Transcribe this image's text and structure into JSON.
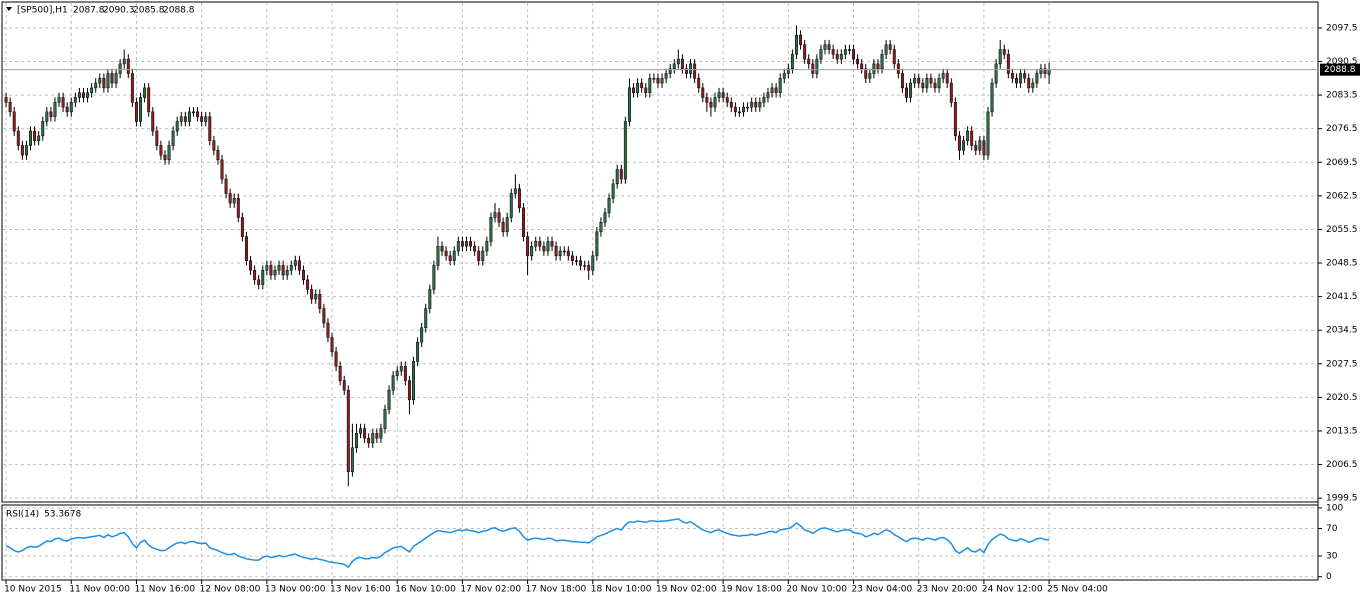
{
  "chart_data": [
    {
      "type": "candlestick",
      "title": "[SP500],H1",
      "open": [
        2083,
        2082,
        2080,
        2076,
        2073,
        2071,
        2073,
        2076,
        2074,
        2075,
        2078,
        2080,
        2079,
        2082,
        2083,
        2081,
        2080,
        2082,
        2083,
        2084,
        2083,
        2084,
        2085,
        2086,
        2087,
        2085,
        2088,
        2086,
        2088,
        2090,
        2091,
        2088,
        2082,
        2078,
        2083,
        2085,
        2080,
        2076,
        2073,
        2071,
        2070,
        2073,
        2076,
        2078,
        2079,
        2078,
        2080,
        2080,
        2079,
        2078,
        2079,
        2074,
        2072,
        2070,
        2066,
        2063,
        2061,
        2062,
        2058,
        2054,
        2049,
        2047,
        2045,
        2044,
        2047,
        2048,
        2046,
        2047,
        2048,
        2046,
        2047,
        2048,
        2049,
        2047,
        2045,
        2043,
        2041,
        2042,
        2039,
        2036,
        2033,
        2030,
        2027,
        2024,
        2022,
        2005,
        2010,
        2013,
        2014,
        2012,
        2011,
        2013,
        2012,
        2014,
        2018,
        2022,
        2025,
        2026,
        2027,
        2024,
        2020,
        2028,
        2032,
        2035,
        2039,
        2043,
        2048,
        2052,
        2051,
        2050,
        2049,
        2051,
        2053,
        2052,
        2053,
        2052,
        2051,
        2049,
        2051,
        2053,
        2058,
        2059,
        2057,
        2055,
        2058,
        2063,
        2064,
        2060,
        2054,
        2050,
        2052,
        2053,
        2052,
        2051,
        2053,
        2052,
        2050,
        2051,
        2051,
        2050,
        2049,
        2049,
        2048,
        2048,
        2047,
        2050,
        2055,
        2057,
        2059,
        2062,
        2065,
        2068,
        2066,
        2078,
        2085,
        2084,
        2086,
        2085,
        2084,
        2087,
        2087,
        2086,
        2087,
        2088,
        2089,
        2090,
        2091,
        2089,
        2088,
        2090,
        2087,
        2085,
        2083,
        2082,
        2081,
        2083,
        2084,
        2083,
        2082,
        2081,
        2080,
        2080,
        2081,
        2081,
        2082,
        2081,
        2082,
        2083,
        2084,
        2085,
        2084,
        2087,
        2088,
        2089,
        2092,
        2096,
        2094,
        2091,
        2090,
        2088,
        2091,
        2093,
        2094,
        2093,
        2092,
        2091,
        2092,
        2093,
        2093,
        2091,
        2090,
        2089,
        2087,
        2088,
        2090,
        2089,
        2092,
        2094,
        2093,
        2090,
        2088,
        2085,
        2083,
        2086,
        2087,
        2086,
        2085,
        2087,
        2086,
        2085,
        2087,
        2088,
        2086,
        2082,
        2075,
        2072,
        2074,
        2076,
        2073,
        2072,
        2074,
        2071,
        2080,
        2086,
        2090,
        2093,
        2092,
        2088,
        2087,
        2086,
        2088,
        2087,
        2085,
        2086,
        2088,
        2089,
        2087.8
      ],
      "high": [
        2084,
        2083,
        2081,
        2077,
        2074,
        2074,
        2077,
        2077,
        2076,
        2079,
        2081,
        2081,
        2083,
        2084,
        2084,
        2082,
        2083,
        2084,
        2085,
        2085,
        2085,
        2086,
        2087,
        2088,
        2088,
        2089,
        2089,
        2089,
        2091,
        2093,
        2092,
        2089,
        2083,
        2084,
        2086,
        2086,
        2081,
        2077,
        2074,
        2072,
        2074,
        2077,
        2079,
        2080,
        2080,
        2081,
        2081,
        2081,
        2080,
        2080,
        2080,
        2075,
        2073,
        2071,
        2067,
        2064,
        2063,
        2063,
        2059,
        2055,
        2050,
        2048,
        2046,
        2048,
        2049,
        2049,
        2048,
        2049,
        2049,
        2048,
        2049,
        2050,
        2050,
        2048,
        2046,
        2044,
        2043,
        2043,
        2040,
        2037,
        2034,
        2031,
        2028,
        2025,
        2023,
        2015,
        2015,
        2015,
        2015,
        2013,
        2014,
        2014,
        2015,
        2019,
        2023,
        2026,
        2027,
        2028,
        2028,
        2025,
        2029,
        2033,
        2036,
        2040,
        2044,
        2049,
        2054,
        2053,
        2052,
        2051,
        2052,
        2054,
        2054,
        2054,
        2054,
        2053,
        2052,
        2052,
        2054,
        2059,
        2061,
        2060,
        2058,
        2059,
        2064,
        2067,
        2065,
        2061,
        2055,
        2053,
        2054,
        2054,
        2053,
        2054,
        2054,
        2053,
        2052,
        2052,
        2052,
        2051,
        2050,
        2050,
        2049,
        2049,
        2051,
        2056,
        2058,
        2060,
        2063,
        2066,
        2069,
        2069,
        2079,
        2087,
        2086,
        2087,
        2087,
        2086,
        2088,
        2088,
        2088,
        2088,
        2089,
        2090,
        2091,
        2093,
        2092,
        2090,
        2091,
        2091,
        2088,
        2086,
        2084,
        2083,
        2084,
        2085,
        2085,
        2084,
        2083,
        2082,
        2081,
        2082,
        2082,
        2083,
        2083,
        2083,
        2084,
        2085,
        2086,
        2086,
        2088,
        2089,
        2090,
        2093,
        2098,
        2097,
        2095,
        2092,
        2091,
        2092,
        2094,
        2095,
        2095,
        2094,
        2093,
        2093,
        2094,
        2094,
        2094,
        2092,
        2091,
        2090,
        2089,
        2091,
        2091,
        2093,
        2095,
        2095,
        2094,
        2091,
        2089,
        2086,
        2087,
        2088,
        2088,
        2087,
        2088,
        2088,
        2087,
        2088,
        2089,
        2089,
        2087,
        2083,
        2076,
        2075,
        2077,
        2077,
        2074,
        2075,
        2075,
        2081,
        2087,
        2091,
        2095,
        2094,
        2093,
        2089,
        2088,
        2089,
        2089,
        2088,
        2087,
        2089,
        2090,
        2090,
        2090.3
      ],
      "low": [
        2081,
        2079,
        2075,
        2072,
        2070,
        2070,
        2072,
        2073,
        2073,
        2074,
        2077,
        2078,
        2078,
        2081,
        2080,
        2079,
        2079,
        2081,
        2082,
        2082,
        2082,
        2083,
        2084,
        2085,
        2084,
        2084,
        2085,
        2085,
        2087,
        2089,
        2087,
        2081,
        2077,
        2077,
        2082,
        2079,
        2075,
        2072,
        2070,
        2069,
        2069,
        2072,
        2075,
        2077,
        2077,
        2077,
        2079,
        2078,
        2077,
        2077,
        2073,
        2071,
        2069,
        2065,
        2062,
        2060,
        2060,
        2057,
        2053,
        2048,
        2046,
        2044,
        2043,
        2043,
        2046,
        2045,
        2045,
        2046,
        2045,
        2045,
        2046,
        2047,
        2046,
        2044,
        2042,
        2040,
        2040,
        2038,
        2035,
        2032,
        2029,
        2026,
        2023,
        2021,
        2002,
        2004,
        2009,
        2012,
        2011,
        2010,
        2010,
        2011,
        2011,
        2013,
        2017,
        2021,
        2024,
        2025,
        2023,
        2017,
        2019,
        2027,
        2031,
        2034,
        2038,
        2042,
        2047,
        2050,
        2049,
        2048,
        2048,
        2050,
        2051,
        2051,
        2051,
        2050,
        2048,
        2048,
        2050,
        2052,
        2057,
        2056,
        2054,
        2054,
        2057,
        2062,
        2059,
        2053,
        2046,
        2049,
        2051,
        2051,
        2050,
        2050,
        2051,
        2049,
        2049,
        2050,
        2049,
        2048,
        2048,
        2047,
        2047,
        2045,
        2046,
        2049,
        2054,
        2056,
        2058,
        2061,
        2064,
        2065,
        2065,
        2077,
        2083,
        2083,
        2084,
        2083,
        2083,
        2086,
        2085,
        2085,
        2086,
        2087,
        2088,
        2089,
        2088,
        2087,
        2087,
        2086,
        2084,
        2082,
        2080,
        2079,
        2080,
        2082,
        2082,
        2081,
        2080,
        2079,
        2079,
        2079,
        2080,
        2080,
        2080,
        2080,
        2081,
        2082,
        2083,
        2083,
        2083,
        2086,
        2087,
        2088,
        2091,
        2093,
        2090,
        2089,
        2087,
        2087,
        2090,
        2092,
        2092,
        2091,
        2090,
        2090,
        2091,
        2092,
        2090,
        2089,
        2088,
        2086,
        2086,
        2087,
        2088,
        2088,
        2091,
        2092,
        2089,
        2087,
        2084,
        2082,
        2082,
        2085,
        2085,
        2084,
        2084,
        2085,
        2084,
        2084,
        2086,
        2085,
        2081,
        2074,
        2070,
        2071,
        2073,
        2072,
        2071,
        2071,
        2070,
        2070,
        2079,
        2085,
        2089,
        2091,
        2087,
        2086,
        2085,
        2085,
        2086,
        2084,
        2084,
        2085,
        2087,
        2087,
        2085.8
      ],
      "close": [
        2082,
        2080,
        2076,
        2073,
        2071,
        2073,
        2076,
        2074,
        2075,
        2078,
        2080,
        2079,
        2082,
        2083,
        2081,
        2080,
        2082,
        2083,
        2084,
        2083,
        2084,
        2085,
        2086,
        2087,
        2085,
        2088,
        2086,
        2088,
        2090,
        2091,
        2088,
        2082,
        2078,
        2083,
        2085,
        2080,
        2076,
        2073,
        2071,
        2070,
        2073,
        2076,
        2078,
        2079,
        2078,
        2080,
        2080,
        2079,
        2078,
        2079,
        2074,
        2072,
        2070,
        2066,
        2063,
        2061,
        2062,
        2058,
        2054,
        2049,
        2047,
        2045,
        2044,
        2047,
        2048,
        2046,
        2047,
        2048,
        2046,
        2047,
        2048,
        2049,
        2047,
        2045,
        2043,
        2041,
        2042,
        2039,
        2036,
        2033,
        2030,
        2027,
        2024,
        2022,
        2005,
        2010,
        2013,
        2014,
        2012,
        2011,
        2013,
        2012,
        2014,
        2018,
        2022,
        2025,
        2026,
        2027,
        2024,
        2020,
        2028,
        2032,
        2035,
        2039,
        2043,
        2048,
        2052,
        2051,
        2050,
        2049,
        2051,
        2053,
        2052,
        2053,
        2052,
        2051,
        2049,
        2051,
        2053,
        2058,
        2059,
        2057,
        2055,
        2058,
        2063,
        2064,
        2060,
        2054,
        2050,
        2052,
        2053,
        2052,
        2051,
        2053,
        2052,
        2050,
        2051,
        2051,
        2050,
        2049,
        2049,
        2048,
        2048,
        2047,
        2050,
        2055,
        2057,
        2059,
        2062,
        2065,
        2068,
        2066,
        2078,
        2085,
        2084,
        2086,
        2085,
        2084,
        2087,
        2087,
        2086,
        2087,
        2088,
        2089,
        2090,
        2091,
        2089,
        2088,
        2090,
        2087,
        2085,
        2083,
        2082,
        2081,
        2083,
        2084,
        2083,
        2082,
        2081,
        2080,
        2080,
        2081,
        2081,
        2082,
        2081,
        2082,
        2083,
        2084,
        2085,
        2084,
        2087,
        2088,
        2089,
        2092,
        2096,
        2094,
        2091,
        2090,
        2088,
        2091,
        2093,
        2094,
        2093,
        2092,
        2091,
        2092,
        2093,
        2093,
        2091,
        2090,
        2089,
        2087,
        2088,
        2090,
        2089,
        2092,
        2094,
        2093,
        2090,
        2088,
        2085,
        2083,
        2086,
        2087,
        2086,
        2085,
        2087,
        2086,
        2085,
        2087,
        2088,
        2086,
        2082,
        2075,
        2072,
        2074,
        2076,
        2073,
        2072,
        2074,
        2071,
        2080,
        2086,
        2090,
        2093,
        2092,
        2088,
        2087,
        2086,
        2088,
        2087,
        2085,
        2086,
        2088,
        2089,
        2088,
        2088.8
      ],
      "up_color": "#2e6b47",
      "down_color": "#8b1f1f",
      "wick_color": "#000000",
      "ylim": [
        1998.7,
        2102.9
      ],
      "yticks": [
        2097.5,
        2090.5,
        2083.5,
        2076.5,
        2069.5,
        2062.5,
        2055.5,
        2048.5,
        2041.5,
        2034.5,
        2027.5,
        2020.5,
        2013.5,
        2006.5,
        1999.5
      ],
      "xlim": [
        -1,
        322
      ],
      "xticks": [
        {
          "value": 0,
          "label": "10 Nov 2015"
        },
        {
          "value": 16,
          "label": "11 Nov 00:00"
        },
        {
          "value": 32,
          "label": "11 Nov 16:00"
        },
        {
          "value": 48,
          "label": "12 Nov 08:00"
        },
        {
          "value": 64,
          "label": "13 Nov 00:00"
        },
        {
          "value": 80,
          "label": "13 Nov 16:00"
        },
        {
          "value": 96,
          "label": "16 Nov 10:00"
        },
        {
          "value": 112,
          "label": "17 Nov 02:00"
        },
        {
          "value": 128,
          "label": "17 Nov 18:00"
        },
        {
          "value": 144,
          "label": "18 Nov 10:00"
        },
        {
          "value": 160,
          "label": "19 Nov 02:00"
        },
        {
          "value": 176,
          "label": "19 Nov 18:00"
        },
        {
          "value": 192,
          "label": "20 Nov 10:00"
        },
        {
          "value": 208,
          "label": "23 Nov 04:00"
        },
        {
          "value": 224,
          "label": "23 Nov 20:00"
        },
        {
          "value": 240,
          "label": "24 Nov 12:00"
        },
        {
          "value": 256,
          "label": "25 Nov 04:00"
        }
      ],
      "grid": true
    },
    {
      "type": "line",
      "title": "RSI(14)",
      "color": "#1e8fe6",
      "values": [
        45,
        42,
        38,
        36,
        38,
        42,
        44,
        43,
        44,
        48,
        52,
        51,
        55,
        56,
        53,
        52,
        55,
        56,
        57,
        56,
        57,
        58,
        59,
        60,
        57,
        61,
        58,
        60,
        63,
        64,
        58,
        48,
        42,
        50,
        53,
        46,
        42,
        40,
        38,
        38,
        42,
        46,
        49,
        50,
        48,
        51,
        51,
        49,
        48,
        49,
        42,
        40,
        38,
        35,
        33,
        32,
        34,
        30,
        28,
        26,
        25,
        24,
        24,
        28,
        30,
        28,
        29,
        31,
        29,
        30,
        32,
        33,
        30,
        28,
        27,
        25,
        27,
        25,
        24,
        22,
        21,
        20,
        19,
        18,
        14,
        22,
        27,
        28,
        26,
        26,
        28,
        27,
        30,
        35,
        38,
        42,
        43,
        44,
        40,
        36,
        44,
        48,
        52,
        56,
        60,
        64,
        67,
        66,
        65,
        64,
        66,
        68,
        67,
        68,
        67,
        66,
        64,
        66,
        67,
        70,
        71,
        68,
        66,
        68,
        70,
        71,
        66,
        58,
        53,
        55,
        56,
        55,
        54,
        56,
        55,
        52,
        53,
        53,
        52,
        51,
        51,
        50,
        50,
        49,
        53,
        58,
        60,
        62,
        65,
        68,
        70,
        68,
        75,
        80,
        79,
        81,
        80,
        79,
        81,
        81,
        80,
        81,
        81,
        82,
        83,
        84,
        80,
        78,
        80,
        76,
        72,
        68,
        66,
        64,
        67,
        68,
        65,
        63,
        61,
        60,
        59,
        60,
        60,
        62,
        60,
        62,
        63,
        65,
        66,
        64,
        68,
        69,
        70,
        73,
        78,
        74,
        68,
        66,
        63,
        67,
        70,
        71,
        69,
        67,
        65,
        67,
        68,
        68,
        64,
        63,
        62,
        58,
        60,
        63,
        61,
        65,
        68,
        66,
        61,
        58,
        54,
        51,
        55,
        56,
        55,
        53,
        56,
        55,
        53,
        56,
        57,
        54,
        48,
        38,
        34,
        38,
        42,
        37,
        36,
        40,
        35,
        47,
        54,
        58,
        62,
        60,
        55,
        53,
        52,
        55,
        53,
        50,
        52,
        55,
        56,
        54,
        53.3678
      ],
      "ylim": [
        -4.8,
        104.2
      ],
      "yticks": [
        100,
        70,
        30,
        0
      ],
      "grid": true
    }
  ]
}
